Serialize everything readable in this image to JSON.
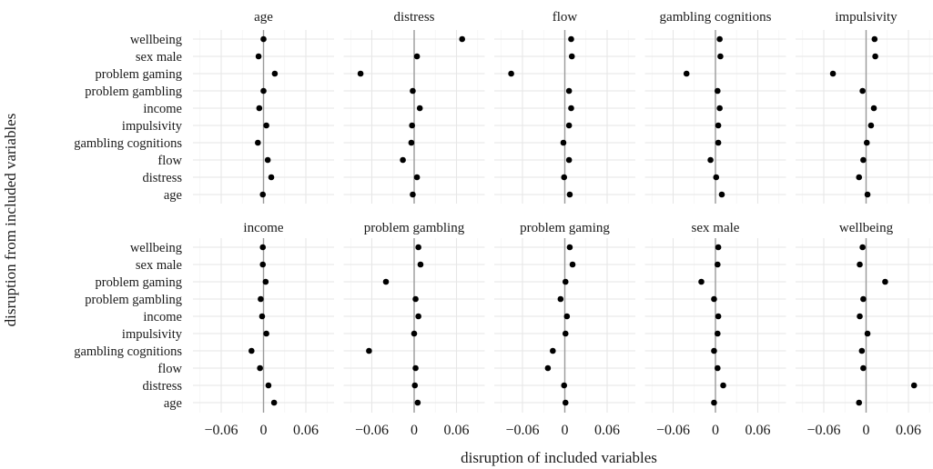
{
  "chart_data": {
    "type": "scatter",
    "facets": 10,
    "layout": "2 rows x 5 columns",
    "xlabel": "disruption of included variables",
    "ylabel": "disruption from included variables",
    "xlim": [
      -0.1,
      0.1
    ],
    "x_ticks": [
      -0.06,
      0,
      0.06
    ],
    "x_tick_labels": [
      "−0.06",
      "0",
      "0.06"
    ],
    "vline": 0,
    "grid": true,
    "y_categories": [
      "wellbeing",
      "sex male",
      "problem gaming",
      "problem gambling",
      "income",
      "impulsivity",
      "gambling cognitions",
      "flow",
      "distress",
      "age"
    ],
    "panels": [
      {
        "title": "age",
        "values": [
          0.0,
          -0.007,
          0.016,
          0.0,
          -0.006,
          0.004,
          -0.008,
          0.006,
          0.011,
          -0.001
        ]
      },
      {
        "title": "distress",
        "values": [
          0.068,
          0.004,
          -0.076,
          -0.002,
          0.008,
          -0.003,
          -0.004,
          -0.016,
          0.004,
          -0.002
        ]
      },
      {
        "title": "flow",
        "values": [
          0.009,
          0.01,
          -0.076,
          0.006,
          0.009,
          0.006,
          -0.002,
          0.006,
          -0.001,
          0.007
        ]
      },
      {
        "title": "gambling cognitions",
        "values": [
          0.006,
          0.007,
          -0.041,
          0.003,
          0.006,
          0.004,
          0.004,
          -0.007,
          0.001,
          0.009
        ]
      },
      {
        "title": "impulsivity",
        "values": [
          0.012,
          0.013,
          -0.047,
          -0.005,
          0.011,
          0.007,
          0.001,
          -0.004,
          -0.01,
          0.002
        ]
      },
      {
        "title": "income",
        "values": [
          -0.001,
          -0.001,
          0.003,
          -0.004,
          -0.002,
          0.004,
          -0.017,
          -0.005,
          0.007,
          0.015
        ]
      },
      {
        "title": "problem gambling",
        "values": [
          0.006,
          0.009,
          -0.04,
          0.002,
          0.006,
          0.0,
          -0.064,
          0.002,
          0.001,
          0.005
        ]
      },
      {
        "title": "problem gaming",
        "values": [
          0.007,
          0.011,
          0.001,
          -0.006,
          0.003,
          0.001,
          -0.017,
          -0.024,
          -0.001,
          0.001
        ]
      },
      {
        "title": "sex male",
        "values": [
          0.004,
          0.003,
          -0.02,
          -0.002,
          0.004,
          0.003,
          -0.002,
          0.003,
          0.011,
          -0.002
        ]
      },
      {
        "title": "wellbeing",
        "values": [
          -0.005,
          -0.009,
          0.027,
          -0.004,
          -0.009,
          0.002,
          -0.006,
          -0.004,
          0.068,
          -0.01
        ]
      }
    ]
  }
}
